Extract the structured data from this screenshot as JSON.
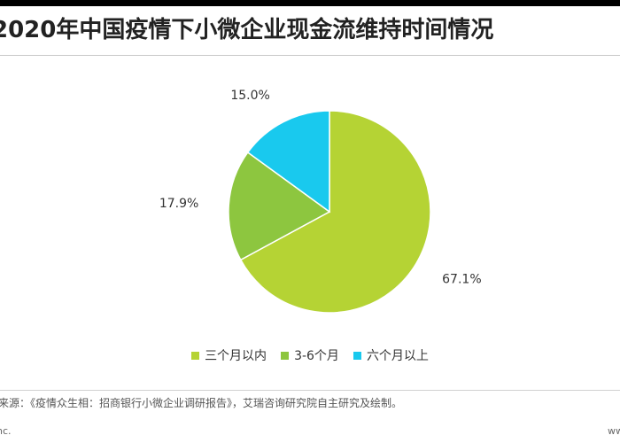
{
  "title": "2020年中国疫情下小微企业现金流维持时间情况",
  "chart_data": {
    "type": "pie",
    "title": "2020年中国疫情下小微企业现金流维持时间情况",
    "slices": [
      {
        "label": "三个月以内",
        "value": 67.1,
        "value_label": "67.1%",
        "color": "#b5d334"
      },
      {
        "label": "3-6个月",
        "value": 17.9,
        "value_label": "17.9%",
        "color": "#8dc63f"
      },
      {
        "label": "六个月以上",
        "value": 15.0,
        "value_label": "15.0%",
        "color": "#19c9ee"
      }
    ],
    "start": "12 o'clock",
    "direction": "clockwise",
    "legend_position": "bottom"
  },
  "legend": [
    {
      "label": "三个月以内",
      "color": "#b5d334"
    },
    {
      "label": "3-6个月",
      "color": "#8dc63f"
    },
    {
      "label": "六个月以上",
      "color": "#19c9ee"
    }
  ],
  "footer": {
    "source": "来源：《疫情众生相：招商银行小微企业调研报告》，艾瑞咨询研究院自主研究及绘制。",
    "left": "nc.",
    "right": "ww"
  }
}
